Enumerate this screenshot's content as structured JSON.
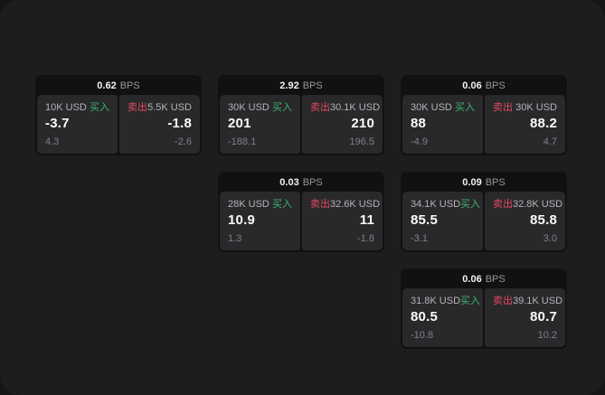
{
  "colors": {
    "page_bg": "#161616",
    "window_bg": "#1d1d1e",
    "card_bg": "#111112",
    "panel_bg": "#29292b",
    "buy_green": "#3db36f",
    "sell_red": "#e2495c"
  },
  "labels": {
    "bps_unit": "BPS",
    "buy": "买入",
    "sell": "卖出"
  },
  "cards": [
    {
      "bps": "0.62",
      "buy": {
        "amount": "10K USD",
        "value": "-3.7",
        "sub": "4.3"
      },
      "sell": {
        "amount": "5.5K USD",
        "value": "-1.8",
        "sub": "-2.6"
      }
    },
    {
      "bps": "2.92",
      "buy": {
        "amount": "30K USD",
        "value": "201",
        "sub": "-188.1"
      },
      "sell": {
        "amount": "30.1K USD",
        "value": "210",
        "sub": "196.5"
      }
    },
    {
      "bps": "0.06",
      "buy": {
        "amount": "30K USD",
        "value": "88",
        "sub": "-4.9"
      },
      "sell": {
        "amount": "30K USD",
        "value": "88.2",
        "sub": "4.7"
      }
    },
    {
      "bps": "0.03",
      "buy": {
        "amount": "28K USD",
        "value": "10.9",
        "sub": "1.3"
      },
      "sell": {
        "amount": "32.6K USD",
        "value": "11",
        "sub": "-1.8"
      }
    },
    {
      "bps": "0.09",
      "buy": {
        "amount": "34.1K USD",
        "value": "85.5",
        "sub": "-3.1"
      },
      "sell": {
        "amount": "32.8K USD",
        "value": "85.8",
        "sub": "3.0"
      }
    },
    {
      "bps": "0.06",
      "buy": {
        "amount": "31.8K USD",
        "value": "80.5",
        "sub": "-10.8"
      },
      "sell": {
        "amount": "39.1K USD",
        "value": "80.7",
        "sub": "10.2"
      }
    }
  ]
}
